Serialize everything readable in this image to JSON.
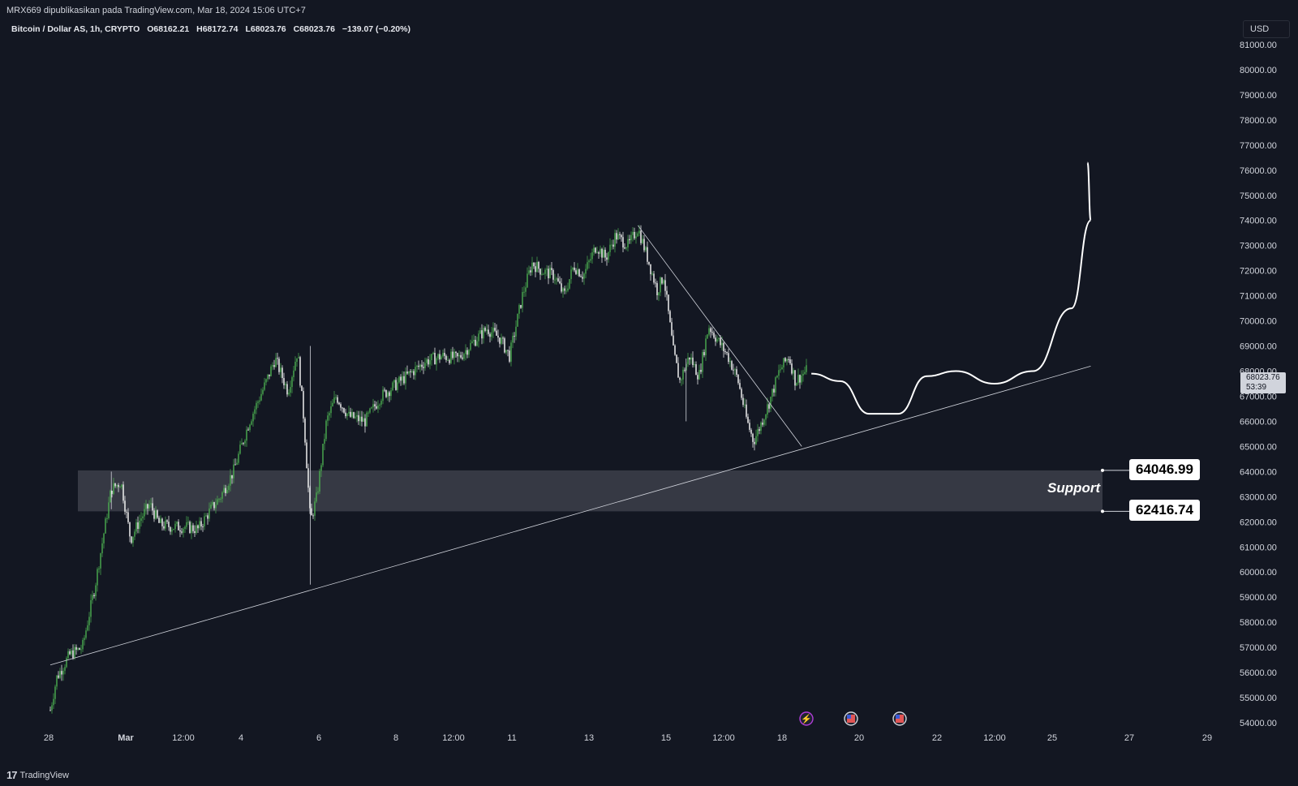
{
  "header": {
    "published_text": "MRX669 dipublikasikan pada TradingView.com, Mar 18, 2024 15:06 UTC+7"
  },
  "legend": {
    "symbol": "Bitcoin / Dollar AS, 1h, CRYPTO",
    "open": "O68162.21",
    "high": "H68172.74",
    "low": "L68023.76",
    "close": "C68023.76",
    "change": "−139.07 (−0.20%)"
  },
  "price_axis": {
    "unit": "USD",
    "last_price": "68023.76",
    "countdown": "53:39"
  },
  "annotations": {
    "support_label": "Support",
    "support_high": "64046.99",
    "support_low": "62416.74"
  },
  "footer": {
    "brand": "TradingView"
  },
  "colors": {
    "background": "#131722",
    "up": "#4caf50",
    "down": "#ffffff",
    "support_zone": "#3a3d48",
    "lines": "#d1d4dc"
  },
  "event_icons": [
    "flash-icon",
    "us-flag-icon",
    "us-flag-icon"
  ],
  "chart_data": {
    "type": "candlestick",
    "ylim": [
      54000,
      81000
    ],
    "y_ticks": [
      54000,
      55000,
      56000,
      57000,
      58000,
      59000,
      60000,
      61000,
      62000,
      63000,
      64000,
      65000,
      66000,
      67000,
      68000,
      69000,
      70000,
      71000,
      72000,
      73000,
      74000,
      75000,
      76000,
      77000,
      78000,
      79000,
      80000,
      81000
    ],
    "x_ticks": [
      "28",
      "Mar",
      "12:00",
      "4",
      "6",
      "8",
      "12:00",
      "11",
      "13",
      "15",
      "12:00",
      "18",
      "20",
      "22",
      "12:00",
      "25",
      "27",
      "29"
    ],
    "price_path": [
      [
        "Feb 28 00:00",
        54500
      ],
      [
        "Feb 28 04:00",
        55800
      ],
      [
        "Feb 28 12:00",
        56700
      ],
      [
        "Feb 28 20:00",
        57000
      ],
      [
        "Feb 29 04:00",
        59500
      ],
      [
        "Feb 29 10:00",
        61800
      ],
      [
        "Feb 29 14:00",
        63300
      ],
      [
        "Feb 29 20:00",
        63600
      ],
      [
        "Mar 1 02:00",
        61300
      ],
      [
        "Mar 1 08:00",
        62100
      ],
      [
        "Mar 1 14:00",
        62700
      ],
      [
        "Mar 1 20:00",
        61900
      ],
      [
        "Mar 2 04:00",
        61800
      ],
      [
        "Mar 2 12:00",
        61800
      ],
      [
        "Mar 2 20:00",
        61700
      ],
      [
        "Mar 3 04:00",
        62500
      ],
      [
        "Mar 3 10:00",
        63000
      ],
      [
        "Mar 3 18:00",
        64000
      ],
      [
        "Mar 4 04:00",
        66000
      ],
      [
        "Mar 4 14:00",
        67500
      ],
      [
        "Mar 4 20:00",
        68500
      ],
      [
        "Mar 5 04:00",
        67200
      ],
      [
        "Mar 5 10:00",
        68800
      ],
      [
        "Mar 5 14:00",
        66000
      ],
      [
        "Mar 5 18:00",
        62000
      ],
      [
        "Mar 5 22:00",
        63000
      ],
      [
        "Mar 6 04:00",
        66000
      ],
      [
        "Mar 6 10:00",
        67000
      ],
      [
        "Mar 6 18:00",
        66200
      ],
      [
        "Mar 7 04:00",
        66000
      ],
      [
        "Mar 7 14:00",
        67000
      ],
      [
        "Mar 8 00:00",
        67500
      ],
      [
        "Mar 8 10:00",
        68000
      ],
      [
        "Mar 8 18:00",
        68400
      ],
      [
        "Mar 9 04:00",
        68600
      ],
      [
        "Mar 9 14:00",
        68500
      ],
      [
        "Mar 10 00:00",
        69200
      ],
      [
        "Mar 10 08:00",
        69700
      ],
      [
        "Mar 10 16:00",
        69300
      ],
      [
        "Mar 10 22:00",
        68600
      ],
      [
        "Mar 11 06:00",
        71000
      ],
      [
        "Mar 11 12:00",
        72300
      ],
      [
        "Mar 11 18:00",
        72000
      ],
      [
        "Mar 12 02:00",
        71800
      ],
      [
        "Mar 12 08:00",
        71000
      ],
      [
        "Mar 12 14:00",
        72200
      ],
      [
        "Mar 12 20:00",
        71800
      ],
      [
        "Mar 13 04:00",
        73000
      ],
      [
        "Mar 13 10:00",
        72500
      ],
      [
        "Mar 13 16:00",
        73400
      ],
      [
        "Mar 14 00:00",
        73000
      ],
      [
        "Mar 14 06:00",
        73700
      ],
      [
        "Mar 14 12:00",
        72500
      ],
      [
        "Mar 14 18:00",
        71200
      ],
      [
        "Mar 14 22:00",
        71800
      ],
      [
        "Mar 15 04:00",
        68800
      ],
      [
        "Mar 15 08:00",
        67600
      ],
      [
        "Mar 15 14:00",
        68600
      ],
      [
        "Mar 15 20:00",
        67800
      ],
      [
        "Mar 16 02:00",
        69800
      ],
      [
        "Mar 16 08:00",
        69200
      ],
      [
        "Mar 16 14:00",
        68600
      ],
      [
        "Mar 16 20:00",
        67700
      ],
      [
        "Mar 17 02:00",
        66000
      ],
      [
        "Mar 17 06:00",
        65200
      ],
      [
        "Mar 17 10:00",
        65800
      ],
      [
        "Mar 17 16:00",
        66800
      ],
      [
        "Mar 17 22:00",
        68000
      ],
      [
        "Mar 18 04:00",
        68600
      ],
      [
        "Mar 18 08:00",
        67600
      ],
      [
        "Mar 18 15:00",
        68023.76
      ]
    ],
    "support_zone": {
      "high": 64046.99,
      "low": 62416.74
    },
    "trendlines": [
      {
        "name": "rising-trendline",
        "from": [
          "Feb 28 00:00",
          56300
        ],
        "to": [
          "Mar 26 00:00",
          68200
        ]
      },
      {
        "name": "descending-trendline",
        "from": [
          "Mar 14 06:00",
          73800
        ],
        "to": [
          "Mar 18 12:00",
          65000
        ]
      }
    ],
    "projection": [
      [
        "Mar 18 18:00",
        67900
      ],
      [
        "Mar 19 12:00",
        67600
      ],
      [
        "Mar 20 06:00",
        66300
      ],
      [
        "Mar 21 00:00",
        66300
      ],
      [
        "Mar 21 18:00",
        67800
      ],
      [
        "Mar 22 12:00",
        68000
      ],
      [
        "Mar 23 12:00",
        67500
      ],
      [
        "Mar 24 12:00",
        68000
      ],
      [
        "Mar 25 12:00",
        70500
      ],
      [
        "Mar 26 00:00",
        74000
      ],
      [
        "Mar 25 22:00",
        76300
      ]
    ]
  }
}
